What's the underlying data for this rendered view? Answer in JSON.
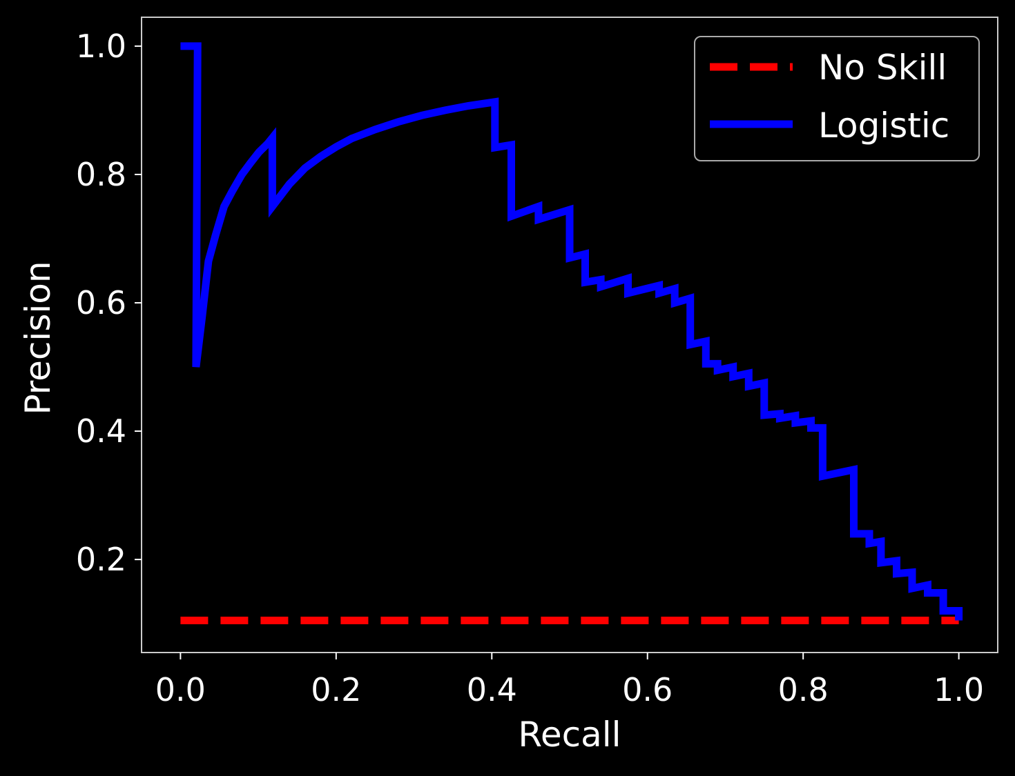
{
  "chart_data": {
    "type": "line",
    "title": "",
    "xlabel": "Recall",
    "ylabel": "Precision",
    "xlim": [
      -0.05,
      1.05
    ],
    "ylim": [
      0.055,
      1.045
    ],
    "xticks": [
      "0.0",
      "0.2",
      "0.4",
      "0.6",
      "0.8",
      "1.0"
    ],
    "yticks": [
      "0.2",
      "0.4",
      "0.6",
      "0.8",
      "1.0"
    ],
    "grid": false,
    "legend_position": "top-right",
    "background": "#000000",
    "series": [
      {
        "name": "No Skill",
        "color": "#ff0000",
        "style": "dashed",
        "x": [
          0.0,
          1.0
        ],
        "y": [
          0.105,
          0.105
        ]
      },
      {
        "name": "Logistic",
        "color": "#0000ff",
        "style": "solid",
        "x": [
          0.0,
          0.022,
          0.02,
          0.028,
          0.036,
          0.045,
          0.056,
          0.067,
          0.079,
          0.09,
          0.101,
          0.112,
          0.118,
          0.118,
          0.14,
          0.16,
          0.18,
          0.2,
          0.22,
          0.25,
          0.28,
          0.31,
          0.34,
          0.37,
          0.404,
          0.404,
          0.425,
          0.425,
          0.46,
          0.46,
          0.5,
          0.5,
          0.52,
          0.52,
          0.54,
          0.54,
          0.575,
          0.575,
          0.615,
          0.615,
          0.635,
          0.635,
          0.655,
          0.655,
          0.675,
          0.675,
          0.69,
          0.69,
          0.71,
          0.71,
          0.73,
          0.73,
          0.75,
          0.75,
          0.77,
          0.77,
          0.79,
          0.79,
          0.81,
          0.81,
          0.825,
          0.825,
          0.865,
          0.865,
          0.885,
          0.885,
          0.9,
          0.9,
          0.92,
          0.92,
          0.94,
          0.94,
          0.96,
          0.96,
          0.98,
          0.98,
          1.0,
          1.0
        ],
        "y": [
          1.0,
          1.0,
          0.5,
          0.58,
          0.665,
          0.705,
          0.75,
          0.775,
          0.8,
          0.818,
          0.835,
          0.848,
          0.857,
          0.75,
          0.785,
          0.81,
          0.828,
          0.843,
          0.856,
          0.87,
          0.882,
          0.892,
          0.9,
          0.907,
          0.913,
          0.842,
          0.846,
          0.735,
          0.75,
          0.73,
          0.745,
          0.67,
          0.676,
          0.632,
          0.636,
          0.625,
          0.638,
          0.615,
          0.627,
          0.615,
          0.622,
          0.6,
          0.607,
          0.535,
          0.54,
          0.505,
          0.505,
          0.495,
          0.5,
          0.485,
          0.49,
          0.47,
          0.475,
          0.425,
          0.427,
          0.42,
          0.424,
          0.413,
          0.416,
          0.405,
          0.405,
          0.33,
          0.34,
          0.24,
          0.24,
          0.225,
          0.228,
          0.195,
          0.198,
          0.178,
          0.18,
          0.155,
          0.16,
          0.148,
          0.148,
          0.12,
          0.12,
          0.105
        ]
      }
    ]
  }
}
